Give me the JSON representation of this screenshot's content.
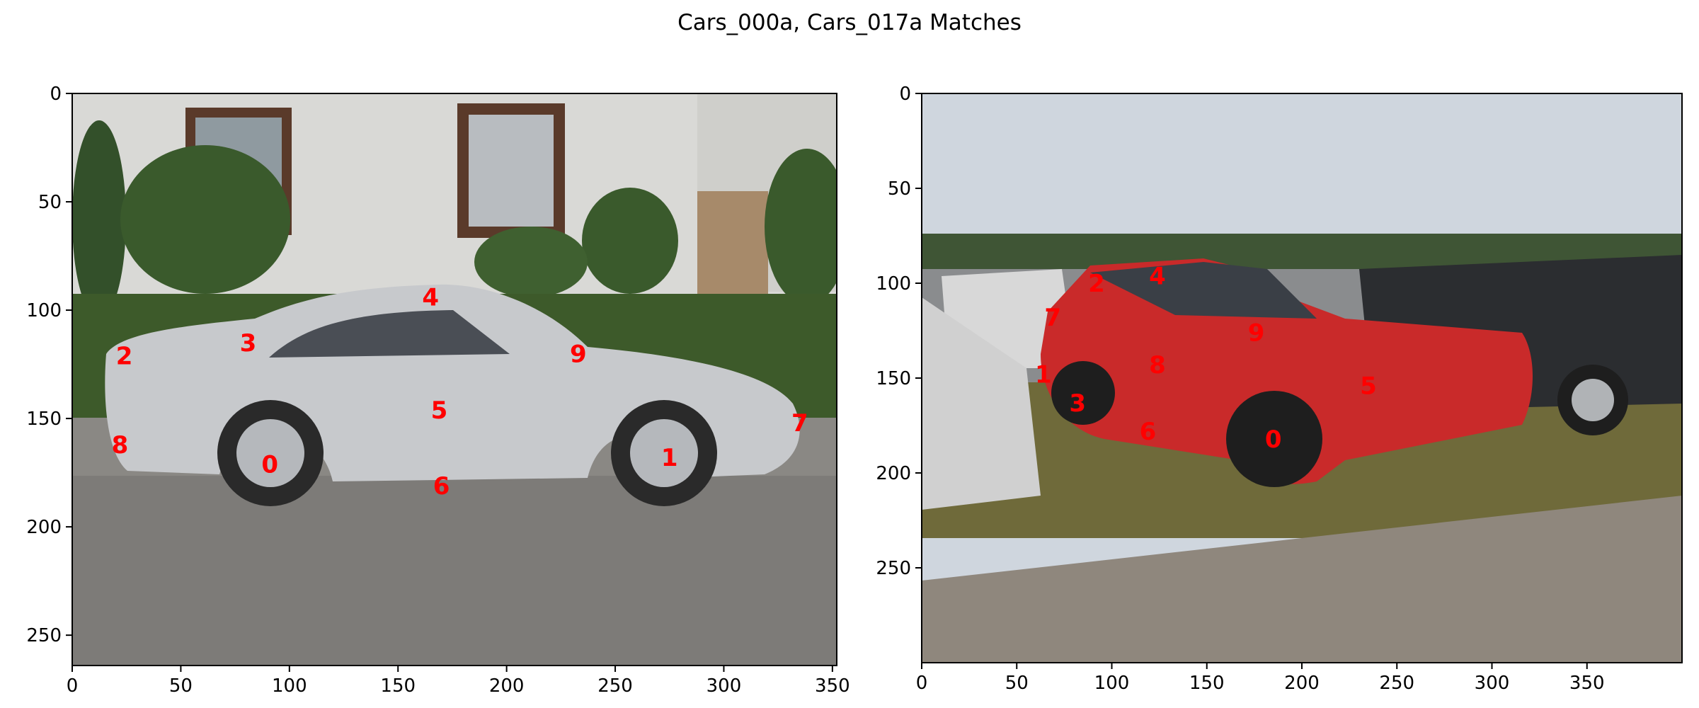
{
  "chart_data": {
    "type": "image-keypoint-matches",
    "title": "Cars_000a, Cars_017a Matches",
    "panels": [
      {
        "name": "Cars_000a",
        "image": {
          "description_icon": "photo-silver-porsche-959-side-view",
          "colors": {
            "sky_wall": "#d9d9d6",
            "hedge": "#3d5a2a",
            "car": "#c7c9cc",
            "road": "#7d7b78",
            "window_frame": "#5a3a2a",
            "tire": "#2a2a2a"
          }
        },
        "xlim": [
          0,
          352
        ],
        "ylim": [
          264,
          0
        ],
        "xticks": [
          0,
          50,
          100,
          150,
          200,
          250,
          300,
          350
        ],
        "yticks": [
          0,
          50,
          100,
          150,
          200,
          250
        ],
        "keypoints": [
          {
            "id": "0",
            "x": 91,
            "y": 171
          },
          {
            "id": "1",
            "x": 275,
            "y": 168
          },
          {
            "id": "2",
            "x": 24,
            "y": 121
          },
          {
            "id": "3",
            "x": 81,
            "y": 115
          },
          {
            "id": "4",
            "x": 165,
            "y": 94
          },
          {
            "id": "5",
            "x": 169,
            "y": 146
          },
          {
            "id": "6",
            "x": 170,
            "y": 181
          },
          {
            "id": "7",
            "x": 335,
            "y": 152
          },
          {
            "id": "8",
            "x": 22,
            "y": 162
          },
          {
            "id": "9",
            "x": 233,
            "y": 120
          }
        ]
      },
      {
        "name": "Cars_017a",
        "image": {
          "description_icon": "photo-red-nissan-rally-car-front-quarter",
          "colors": {
            "sky": "#cfd6de",
            "trees": "#3f5535",
            "grass": "#6f6a3a",
            "car": "#c92a2a",
            "asphalt": "#8f877d",
            "dark_car": "#2b2d30",
            "white_car": "#d8d8d8"
          }
        },
        "xlim": [
          0,
          400
        ],
        "ylim": [
          300,
          0
        ],
        "xticks": [
          0,
          50,
          100,
          150,
          200,
          250,
          300,
          350
        ],
        "yticks": [
          0,
          50,
          100,
          150,
          200,
          250
        ],
        "keypoints": [
          {
            "id": "0",
            "x": 185,
            "y": 182
          },
          {
            "id": "1",
            "x": 64,
            "y": 148
          },
          {
            "id": "2",
            "x": 92,
            "y": 100
          },
          {
            "id": "3",
            "x": 82,
            "y": 163
          },
          {
            "id": "4",
            "x": 124,
            "y": 96
          },
          {
            "id": "5",
            "x": 235,
            "y": 154
          },
          {
            "id": "6",
            "x": 119,
            "y": 178
          },
          {
            "id": "7",
            "x": 69,
            "y": 118
          },
          {
            "id": "8",
            "x": 124,
            "y": 143
          },
          {
            "id": "9",
            "x": 176,
            "y": 126
          }
        ]
      }
    ]
  }
}
